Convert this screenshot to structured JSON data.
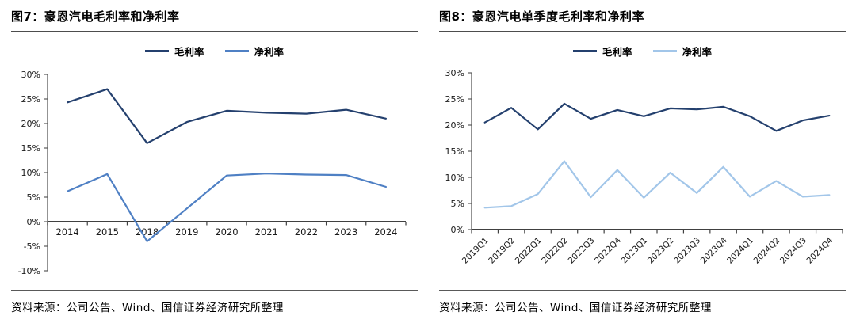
{
  "chart_data": [
    {
      "type": "line",
      "figure_title": "图7：豪恩汽电毛利率和净利率",
      "categories": [
        "2014",
        "2015",
        "2018",
        "2019",
        "2020",
        "2021",
        "2022",
        "2023",
        "2024"
      ],
      "series": [
        {
          "name": "毛利率",
          "color": "#24406E",
          "values": [
            24.3,
            27.0,
            16.0,
            20.3,
            22.6,
            22.2,
            22.0,
            22.8,
            21.0
          ]
        },
        {
          "name": "净利率",
          "color": "#4F80C4",
          "values": [
            6.2,
            9.7,
            -4.0,
            2.7,
            9.4,
            9.8,
            9.6,
            9.5,
            7.1
          ]
        }
      ],
      "ylim": [
        -10,
        30
      ],
      "ytick_step": 5,
      "ytick_suffix": "%",
      "legend_position": "top-center",
      "grid": false,
      "x_labels_rotated": false,
      "source_note": "资料来源：公司公告、Wind、国信证券经济研究所整理"
    },
    {
      "type": "line",
      "figure_title": "图8：豪恩汽电单季度毛利率和净利率",
      "categories": [
        "2019Q1",
        "2019Q2",
        "2022Q1",
        "2022Q2",
        "2022Q3",
        "2022Q4",
        "2023Q1",
        "2023Q2",
        "2023Q3",
        "2023Q4",
        "2024Q1",
        "2024Q2",
        "2024Q3",
        "2024Q4"
      ],
      "series": [
        {
          "name": "毛利率",
          "color": "#24406E",
          "values": [
            20.5,
            23.3,
            19.2,
            24.1,
            21.2,
            22.9,
            21.7,
            23.2,
            23.0,
            23.5,
            21.7,
            18.9,
            20.9,
            21.8
          ]
        },
        {
          "name": "净利率",
          "color": "#A2C6E9",
          "values": [
            4.2,
            4.5,
            6.8,
            13.1,
            6.2,
            11.4,
            6.1,
            10.9,
            7.0,
            12.0,
            6.3,
            9.3,
            6.3,
            6.6
          ]
        }
      ],
      "ylim": [
        0,
        30
      ],
      "ytick_step": 5,
      "ytick_suffix": "%",
      "legend_position": "top-center",
      "grid": false,
      "x_labels_rotated": true,
      "source_note": "资料来源：公司公告、Wind、国信证券经济研究所整理"
    }
  ],
  "styles": {
    "zero_axis_color": "#404040",
    "axis_color": "#595959",
    "tick_label_color": "#1a1a1a"
  }
}
